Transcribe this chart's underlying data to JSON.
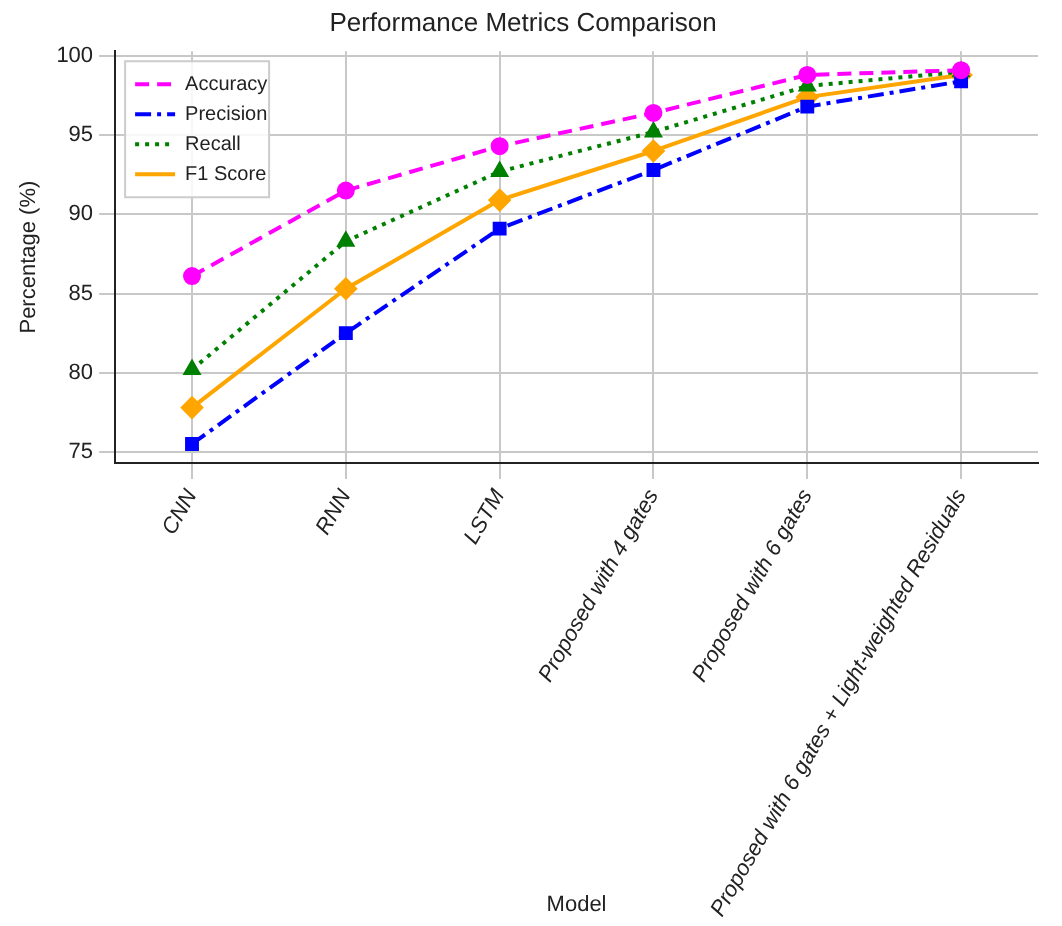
{
  "chart_data": {
    "type": "line",
    "title": "Performance Metrics Comparison",
    "xlabel": "Model",
    "ylabel": "Percentage (%)",
    "categories": [
      "CNN",
      "RNN",
      "LSTM",
      "Proposed with 4 gates",
      "Proposed with 6 gates",
      "Proposed with 6 gates + Light-weighted Residuals"
    ],
    "series": [
      {
        "name": "Accuracy",
        "color": "#ff00ff",
        "marker": "circle",
        "line_style": "dashed",
        "values": [
          86.1,
          91.5,
          94.3,
          96.4,
          98.8,
          99.1
        ]
      },
      {
        "name": "Precision",
        "color": "#0000ff",
        "marker": "square",
        "line_style": "dashdot",
        "values": [
          75.5,
          82.5,
          89.1,
          92.8,
          96.8,
          98.4
        ]
      },
      {
        "name": "Recall",
        "color": "#008000",
        "marker": "triangle",
        "line_style": "dotted",
        "values": [
          80.2,
          88.3,
          92.7,
          95.2,
          98.1,
          99.0
        ]
      },
      {
        "name": "F1 Score",
        "color": "#ffa500",
        "marker": "diamond",
        "line_style": "solid",
        "values": [
          77.8,
          85.3,
          90.9,
          94.0,
          97.4,
          98.8
        ]
      }
    ],
    "ylim": [
      74.3,
      100.3
    ],
    "yticks": [
      75,
      80,
      85,
      90,
      95,
      100
    ],
    "grid": true,
    "legend": "top left"
  }
}
